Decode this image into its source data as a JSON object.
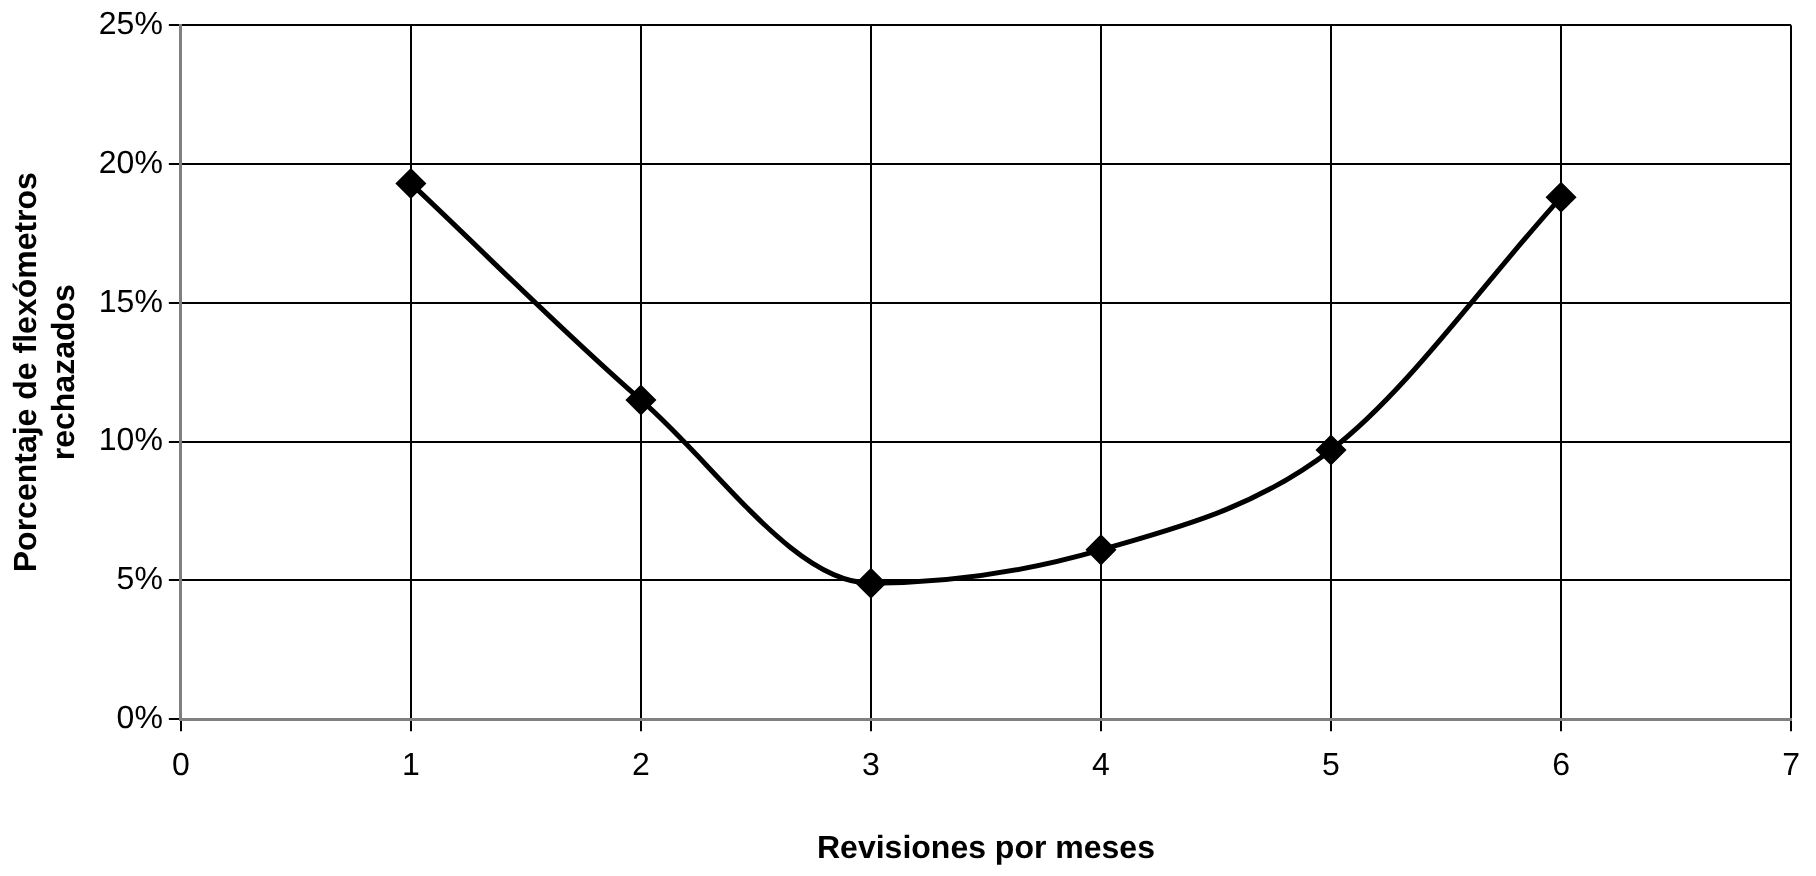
{
  "chart_data": {
    "type": "line",
    "xlabel": "Revisiones por meses",
    "ylabel": "Porcentaje de flexómetros rechazados",
    "x": [
      1,
      2,
      3,
      4,
      5,
      6
    ],
    "series": [
      {
        "color": "#000000",
        "values": [
          19.3,
          11.5,
          4.9,
          6.1,
          9.7,
          18.8
        ]
      }
    ],
    "xlim": [
      0,
      7
    ],
    "xticks": [
      0,
      1,
      2,
      3,
      4,
      5,
      6,
      7
    ],
    "ylim": [
      0,
      25
    ],
    "yticks": [
      {
        "value": 0,
        "label": "0%"
      },
      {
        "value": 5,
        "label": "5%"
      },
      {
        "value": 10,
        "label": "10%"
      },
      {
        "value": 15,
        "label": "15%"
      },
      {
        "value": 20,
        "label": "20%"
      },
      {
        "value": 25,
        "label": "25%"
      }
    ],
    "grid": true,
    "marker": "diamond",
    "line_style": "solid",
    "legend": false
  }
}
